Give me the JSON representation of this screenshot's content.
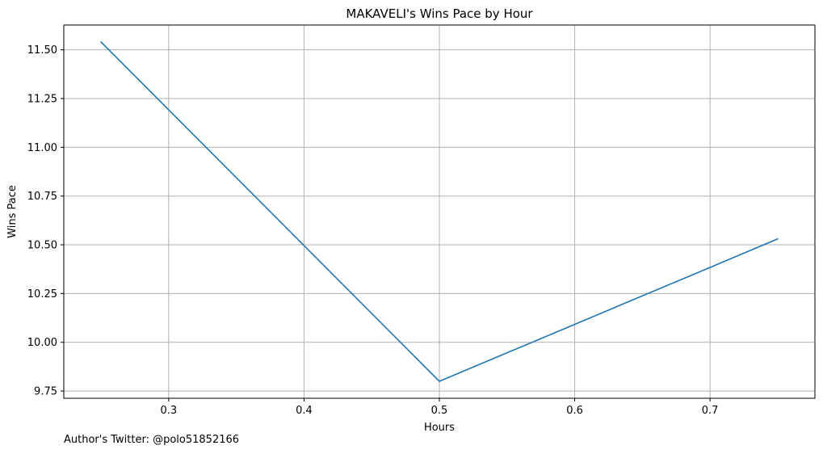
{
  "chart_data": {
    "type": "line",
    "title": "MAKAVELI's Wins Pace by Hour",
    "xlabel": "Hours",
    "ylabel": "Wins Pace",
    "x": [
      0.25,
      0.5,
      0.75
    ],
    "series": [
      {
        "values": [
          11.54,
          9.8,
          10.53
        ],
        "color": "#1f77b4"
      }
    ],
    "xlim": [
      0.2225,
      0.7775
    ],
    "ylim": [
      9.713,
      11.627
    ],
    "xticks": [
      0.3,
      0.4,
      0.5,
      0.6,
      0.7
    ],
    "xtick_labels": [
      "0.3",
      "0.4",
      "0.5",
      "0.6",
      "0.7"
    ],
    "yticks": [
      9.75,
      10.0,
      10.25,
      10.5,
      10.75,
      11.0,
      11.25,
      11.5
    ],
    "ytick_labels": [
      "9.75",
      "10.00",
      "10.25",
      "10.50",
      "10.75",
      "11.00",
      "11.25",
      "11.50"
    ],
    "grid": true
  },
  "footer": {
    "note": "Author's Twitter: @polo51852166"
  }
}
